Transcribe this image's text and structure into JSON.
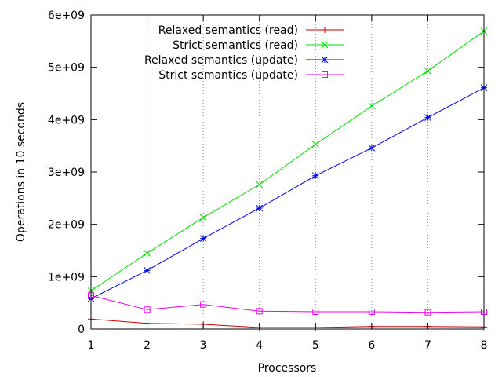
{
  "chart_data": {
    "type": "line",
    "xlabel": "Processors",
    "ylabel": "Operations in 10 seconds",
    "xlim": [
      1,
      8
    ],
    "ylim": [
      0,
      6000000000
    ],
    "x_ticks": [
      "1",
      "2",
      "3",
      "4",
      "5",
      "6",
      "7",
      "8"
    ],
    "y_ticks": [
      "0",
      "1e+09",
      "2e+09",
      "3e+09",
      "4e+09",
      "5e+09",
      "6e+09"
    ],
    "grid": "vertical dotted at x ticks",
    "legend_position": "top-left",
    "x": [
      1,
      2,
      3,
      4,
      5,
      6,
      7,
      8
    ],
    "series": [
      {
        "name": "Relaxed semantics (read)",
        "color": "#cc0000",
        "marker": "plus",
        "values": [
          190000000,
          110000000,
          90000000,
          30000000,
          30000000,
          50000000,
          50000000,
          40000000
        ]
      },
      {
        "name": "Strict semantics (read)",
        "color": "#00dd00",
        "marker": "cross",
        "values": [
          730000000,
          1450000000,
          2130000000,
          2760000000,
          3530000000,
          4260000000,
          4930000000,
          5690000000
        ]
      },
      {
        "name": "Relaxed semantics (update)",
        "color": "#0000ee",
        "marker": "star",
        "values": [
          580000000,
          1120000000,
          1730000000,
          2310000000,
          2930000000,
          3460000000,
          4040000000,
          4610000000
        ]
      },
      {
        "name": "Strict semantics (update)",
        "color": "#ee00ee",
        "marker": "square",
        "values": [
          640000000,
          370000000,
          470000000,
          340000000,
          330000000,
          330000000,
          320000000,
          330000000
        ]
      }
    ]
  }
}
